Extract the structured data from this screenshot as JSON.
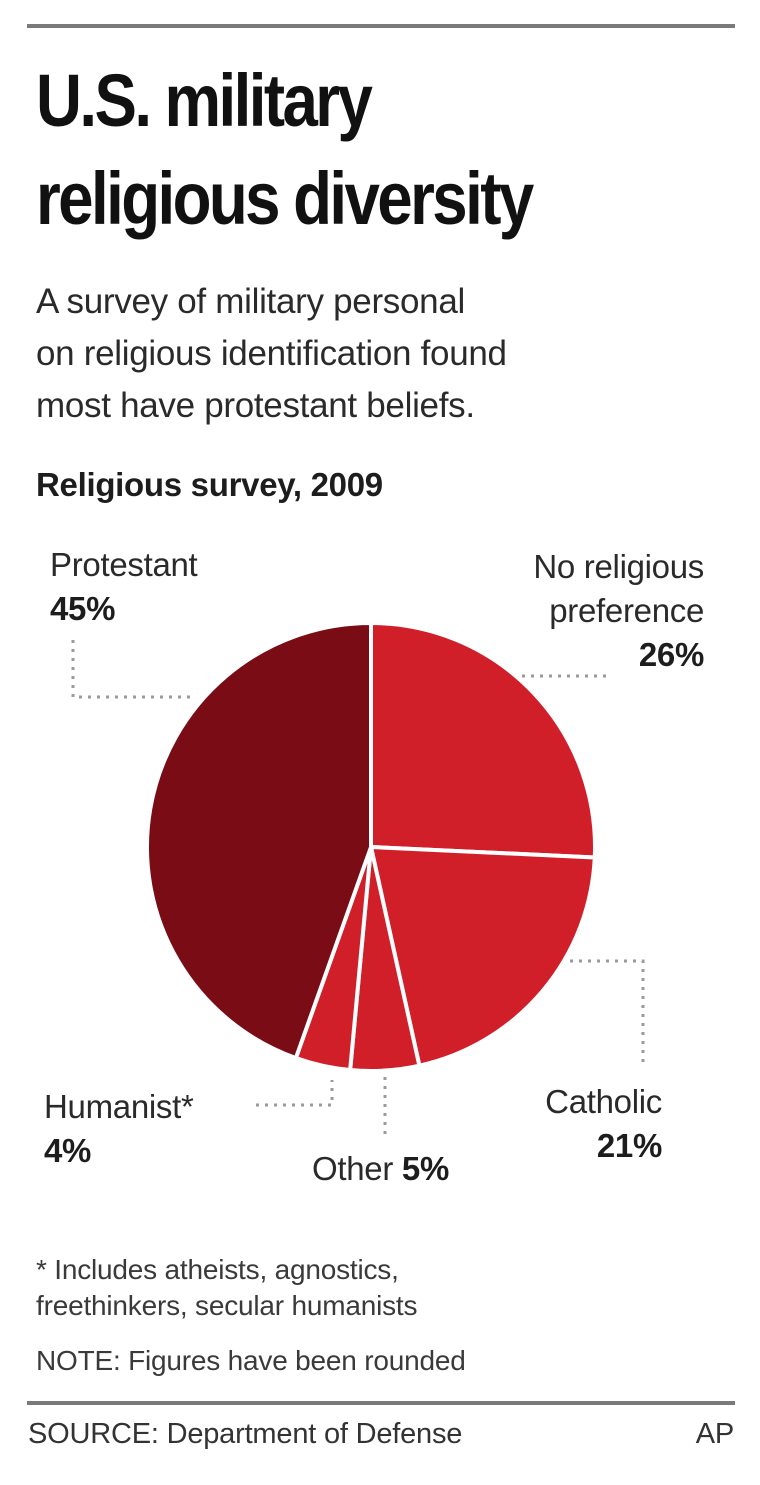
{
  "header": {
    "title_line1": "U.S. military",
    "title_line2": "religious diversity",
    "subtitle": "A survey of military personal\non religious identification found\nmost have protestant beliefs."
  },
  "chart_heading": "Religious survey, 2009",
  "labels": {
    "protestant": {
      "name": "Protestant",
      "pct": "45%"
    },
    "no_pref": {
      "name_line1": "No religious",
      "name_line2": "preference",
      "pct": "26%"
    },
    "catholic": {
      "name": "Catholic",
      "pct": "21%"
    },
    "other": {
      "name": "Other",
      "pct": "5%"
    },
    "humanist": {
      "name": "Humanist*",
      "pct": "4%"
    }
  },
  "notes": {
    "footnote_line1": "* Includes atheists, agnostics,",
    "footnote_line2": "freethinkers, secular humanists",
    "rounding": "NOTE: Figures have been rounded"
  },
  "footer": {
    "source": "SOURCE: Department of Defense",
    "credit": "AP"
  },
  "colors": {
    "protestant": "#7a0c16",
    "others": "#d11f2a",
    "divider": "#ffffff",
    "leader": "#9a9a9a"
  },
  "chart_data": {
    "type": "pie",
    "title": "Religious survey, 2009",
    "categories": [
      "No religious preference",
      "Catholic",
      "Other",
      "Humanist*",
      "Protestant"
    ],
    "values": [
      26,
      21,
      5,
      4,
      45
    ],
    "units": "%",
    "start_angle": "12 o'clock, clockwise",
    "legend": "none (direct labels with dotted leader lines)",
    "footnote": "* Includes atheists, agnostics, freethinkers, secular humanists",
    "note": "Figures have been rounded",
    "source": "Department of Defense"
  }
}
